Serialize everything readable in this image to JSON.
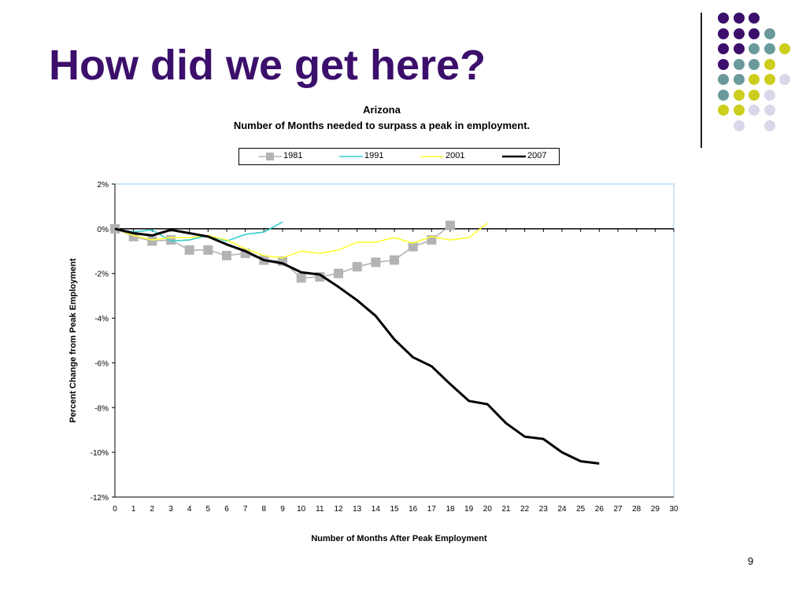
{
  "slide": {
    "title": "How did we get here?",
    "page_number": "9"
  },
  "colors": {
    "title": "#3b0f6b",
    "dot_purple": "#3b0f6b",
    "dot_teal": "#6a9a9b",
    "dot_yellow": "#cdcd1e",
    "dot_lavender": "#d8d8ea",
    "series_1981": "#b3b3b3",
    "series_1991": "#33cccc",
    "series_2001": "#ffff33",
    "series_2007": "#000000",
    "plot_border": "#99ccee"
  },
  "decoration": {
    "dot_grid": [
      [
        "purple",
        "purple",
        "purple",
        null,
        null
      ],
      [
        "purple",
        "purple",
        "purple",
        "teal",
        null
      ],
      [
        "purple",
        "purple",
        "teal",
        "teal",
        "yellow"
      ],
      [
        "purple",
        "teal",
        "teal",
        "yellow",
        null
      ],
      [
        "teal",
        "teal",
        "yellow",
        "yellow",
        "lavender"
      ],
      [
        "teal",
        "yellow",
        "yellow",
        "lavender",
        null
      ],
      [
        "yellow",
        "yellow",
        "lavender",
        "lavender",
        null
      ],
      [
        null,
        "lavender",
        null,
        "lavender",
        null
      ]
    ]
  },
  "chart_data": {
    "type": "line",
    "title": "Arizona",
    "subtitle": "Number of Months needed to surpass a peak in employment.",
    "xlabel": "Number of Months After Peak Employment",
    "ylabel": "Percent Change from Peak Employment",
    "xlim": [
      0,
      30
    ],
    "ylim": [
      -12,
      2
    ],
    "x_ticks": [
      "0",
      "1",
      "2",
      "3",
      "4",
      "5",
      "6",
      "7",
      "8",
      "9",
      "10",
      "11",
      "12",
      "13",
      "14",
      "15",
      "16",
      "17",
      "18",
      "19",
      "20",
      "21",
      "22",
      "23",
      "24",
      "25",
      "26",
      "27",
      "28",
      "29",
      "30"
    ],
    "y_ticks": [
      {
        "value": 2,
        "label": "2%"
      },
      {
        "value": 0,
        "label": "0%"
      },
      {
        "value": -2,
        "label": "-2%"
      },
      {
        "value": -4,
        "label": "-4%"
      },
      {
        "value": -6,
        "label": "-6%"
      },
      {
        "value": -8,
        "label": "-8%"
      },
      {
        "value": -10,
        "label": "-10%"
      },
      {
        "value": -12,
        "label": "-12%"
      }
    ],
    "legend_position": "top",
    "grid": false,
    "series": [
      {
        "name": "1981",
        "marker": "square",
        "x": [
          0,
          1,
          2,
          3,
          4,
          5,
          6,
          7,
          8,
          9,
          10,
          11,
          12,
          13,
          14,
          15,
          16,
          17,
          18
        ],
        "values": [
          0,
          -0.35,
          -0.55,
          -0.5,
          -0.95,
          -0.95,
          -1.2,
          -1.1,
          -1.4,
          -1.45,
          -2.2,
          -2.15,
          -2.0,
          -1.7,
          -1.5,
          -1.4,
          -0.8,
          -0.5,
          0.15
        ]
      },
      {
        "name": "1991",
        "marker": "none",
        "x": [
          0,
          1,
          2,
          3,
          4,
          5,
          6,
          7,
          8,
          9
        ],
        "values": [
          0,
          -0.15,
          -0.05,
          -0.55,
          -0.5,
          -0.3,
          -0.55,
          -0.25,
          -0.15,
          0.3
        ]
      },
      {
        "name": "2001",
        "marker": "none",
        "x": [
          0,
          1,
          2,
          3,
          4,
          5,
          6,
          7,
          8,
          9,
          10,
          11,
          12,
          13,
          14,
          15,
          16,
          17,
          18,
          19,
          20
        ],
        "values": [
          0,
          -0.3,
          -0.5,
          -0.4,
          -0.4,
          -0.3,
          -0.5,
          -0.9,
          -1.2,
          -1.3,
          -1.0,
          -1.1,
          -0.95,
          -0.6,
          -0.6,
          -0.4,
          -0.65,
          -0.35,
          -0.5,
          -0.4,
          0.25
        ]
      },
      {
        "name": "2007",
        "marker": "none",
        "x": [
          0,
          1,
          2,
          3,
          4,
          5,
          6,
          7,
          8,
          9,
          10,
          11,
          12,
          13,
          14,
          15,
          16,
          17,
          18,
          19,
          20,
          21,
          22,
          23,
          24,
          25,
          26
        ],
        "values": [
          0,
          -0.2,
          -0.3,
          -0.05,
          -0.2,
          -0.35,
          -0.7,
          -1.0,
          -1.4,
          -1.55,
          -1.95,
          -2.05,
          -2.6,
          -3.2,
          -3.9,
          -4.95,
          -5.75,
          -6.15,
          -6.95,
          -7.7,
          -7.85,
          -8.7,
          -9.3,
          -9.4,
          -10.0,
          -10.4,
          -10.5
        ]
      }
    ]
  }
}
